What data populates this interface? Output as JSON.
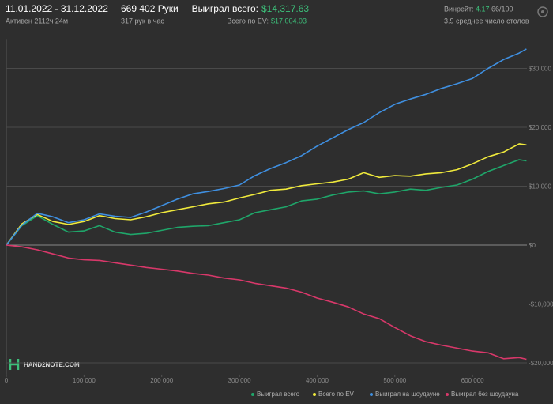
{
  "header": {
    "period": "11.01.2022 - 31.12.2022",
    "active": "Активен 2112ч 24м",
    "hands": "669 402 Руки",
    "hands_per_hour": "317 рук в час",
    "won_label": "Выиграл всего:",
    "won_value": "$14,317.63",
    "ev_label": "Всего по EV:",
    "ev_value": "$17,004.03",
    "winrate_label": "Винрейт:",
    "winrate_value": "4.17",
    "winrate_unit": "66/100",
    "tables": "3.9 среднее число столов",
    "logo": "HAND2NOTE.COM"
  },
  "chart_data": {
    "type": "line",
    "x": [
      0,
      20000,
      40000,
      60000,
      80000,
      100000,
      120000,
      140000,
      160000,
      180000,
      200000,
      220000,
      240000,
      260000,
      280000,
      300000,
      320000,
      340000,
      360000,
      380000,
      400000,
      420000,
      440000,
      460000,
      480000,
      500000,
      520000,
      540000,
      560000,
      580000,
      600000,
      620000,
      640000,
      660000,
      669402
    ],
    "series": [
      {
        "name": "Выиграл всего",
        "color": "#1fa66a",
        "values": [
          0,
          3300,
          5000,
          3500,
          2200,
          2400,
          3300,
          2200,
          1800,
          2000,
          2500,
          3000,
          3200,
          3300,
          3800,
          4300,
          5500,
          6000,
          6500,
          7500,
          7800,
          8500,
          9000,
          9200,
          8700,
          9000,
          9500,
          9300,
          9800,
          10200,
          11200,
          12500,
          13500,
          14500,
          14300
        ]
      },
      {
        "name": "Всего по EV",
        "color": "#f0ea3c",
        "values": [
          0,
          3600,
          5200,
          4000,
          3500,
          4000,
          5000,
          4500,
          4300,
          4800,
          5500,
          6000,
          6500,
          7000,
          7300,
          8000,
          8600,
          9300,
          9500,
          10100,
          10400,
          10700,
          11200,
          12300,
          11500,
          11800,
          11700,
          12100,
          12300,
          12800,
          13800,
          15000,
          15800,
          17200,
          17000
        ]
      },
      {
        "name": "Выиграл на шоудауне",
        "color": "#3f8fe0",
        "values": [
          0,
          3400,
          5400,
          4800,
          3800,
          4300,
          5300,
          4900,
          4700,
          5600,
          6700,
          7800,
          8700,
          9100,
          9600,
          10200,
          11800,
          13000,
          14000,
          15200,
          16800,
          18200,
          19600,
          20800,
          22500,
          23900,
          24800,
          25600,
          26600,
          27400,
          28300,
          30000,
          31500,
          32600,
          33300
        ]
      },
      {
        "name": "Выиграл без шоудауна",
        "color": "#d8386a",
        "values": [
          0,
          -300,
          -800,
          -1500,
          -2200,
          -2500,
          -2600,
          -3000,
          -3400,
          -3800,
          -4100,
          -4400,
          -4800,
          -5100,
          -5600,
          -5900,
          -6500,
          -6900,
          -7300,
          -8000,
          -9000,
          -9700,
          -10500,
          -11700,
          -12500,
          -14000,
          -15400,
          -16400,
          -17000,
          -17500,
          -18000,
          -18300,
          -19300,
          -19100,
          -19400
        ]
      }
    ],
    "xlim": [
      0,
      670000
    ],
    "xticks": [
      0,
      {
        "value": 100000,
        "label": "100 000"
      },
      {
        "value": 200000,
        "label": "200 000"
      },
      {
        "value": 300000,
        "label": "300 000"
      },
      {
        "value": 400000,
        "label": "400 000"
      },
      {
        "value": 500000,
        "label": "500 000"
      },
      {
        "value": 600000,
        "label": "600 000"
      }
    ],
    "ylim": [
      -22000,
      35000
    ],
    "yticks": [
      {
        "value": -20000,
        "label": "-$20,000"
      },
      {
        "value": -10000,
        "label": "-$10,000"
      },
      {
        "value": 0,
        "label": "$0"
      },
      {
        "value": 10000,
        "label": "$10,000"
      },
      {
        "value": 20000,
        "label": "$20,000"
      },
      {
        "value": 30000,
        "label": "$30,000"
      }
    ],
    "grid": true
  }
}
